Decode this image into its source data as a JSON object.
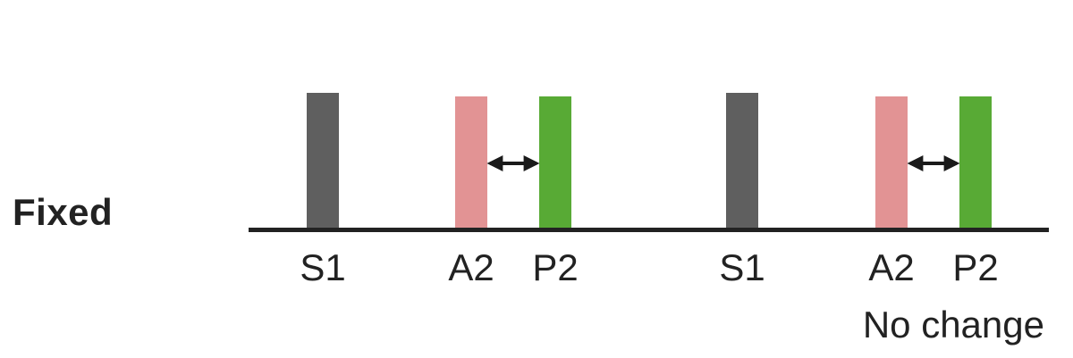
{
  "row_label": "Fixed",
  "caption": "No change",
  "groups": [
    {
      "labels": {
        "s1": "S1",
        "a2": "A2",
        "p2": "P2"
      }
    },
    {
      "labels": {
        "s1": "S1",
        "a2": "A2",
        "p2": "P2"
      }
    }
  ],
  "colors": {
    "s1": "#5f5f5f",
    "a2": "#e29394",
    "p2": "#58aa35",
    "baseline": "#222222",
    "arrow": "#1a1a1a"
  }
}
